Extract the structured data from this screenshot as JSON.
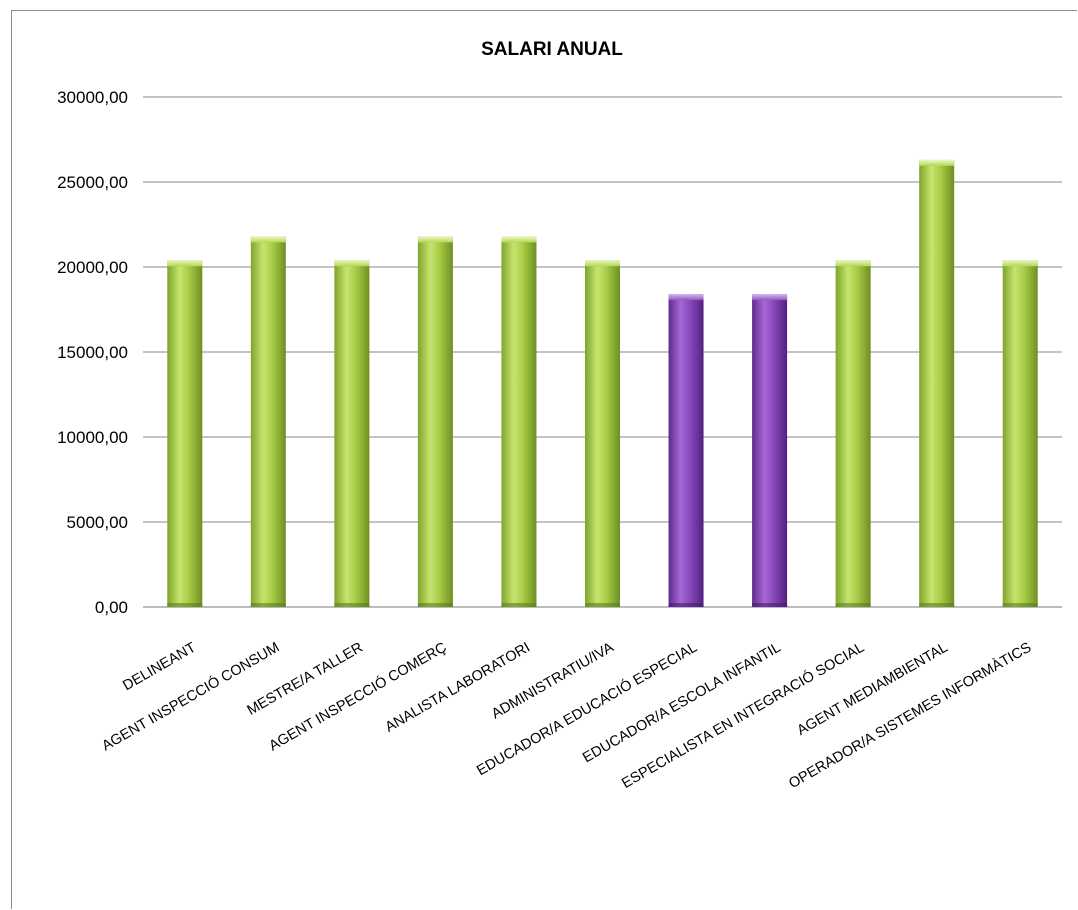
{
  "chart_data": {
    "type": "bar",
    "title": "SALARI  ANUAL",
    "xlabel": "",
    "ylabel": "",
    "ylim": [
      0,
      30000
    ],
    "yticks": [
      0,
      5000,
      10000,
      15000,
      20000,
      25000,
      30000
    ],
    "ytick_labels": [
      "0,00",
      "5000,00",
      "10000,00",
      "15000,00",
      "20000,00",
      "25000,00",
      "30000,00"
    ],
    "grid": true,
    "legend": "none",
    "categories": [
      "DELINEANT",
      "AGENT INSPECCIÓ CONSUM",
      "MESTRE/A TALLER",
      "AGENT INSPECCIÓ COMERÇ",
      "ANALISTA LABORATORI",
      "ADMINISTRATIU/IVA",
      "EDUCADOR/A EDUCACIÓ ESPECIAL",
      "EDUCADOR/A ESCOLA INFANTIL",
      "ESPECIALISTA EN INTEGRACIÓ SOCIAL",
      "AGENT MEDIAMBIENTAL",
      "OPERADOR/A SISTEMES INFORMÀTICS"
    ],
    "values": [
      20400,
      21800,
      20400,
      21800,
      21800,
      20400,
      18400,
      18400,
      20400,
      26300,
      20400
    ],
    "bar_colors": [
      "#9bc43c",
      "#9bc43c",
      "#9bc43c",
      "#9bc43c",
      "#9bc43c",
      "#9bc43c",
      "#7a3aa6",
      "#7a3aa6",
      "#9bc43c",
      "#9bc43c",
      "#9bc43c"
    ]
  },
  "colors": {
    "green_light": "#c4e36a",
    "green_dark": "#6f8f22",
    "purple_light": "#a367d0",
    "purple_dark": "#5a2586",
    "gridline": "#8a8a8a"
  }
}
